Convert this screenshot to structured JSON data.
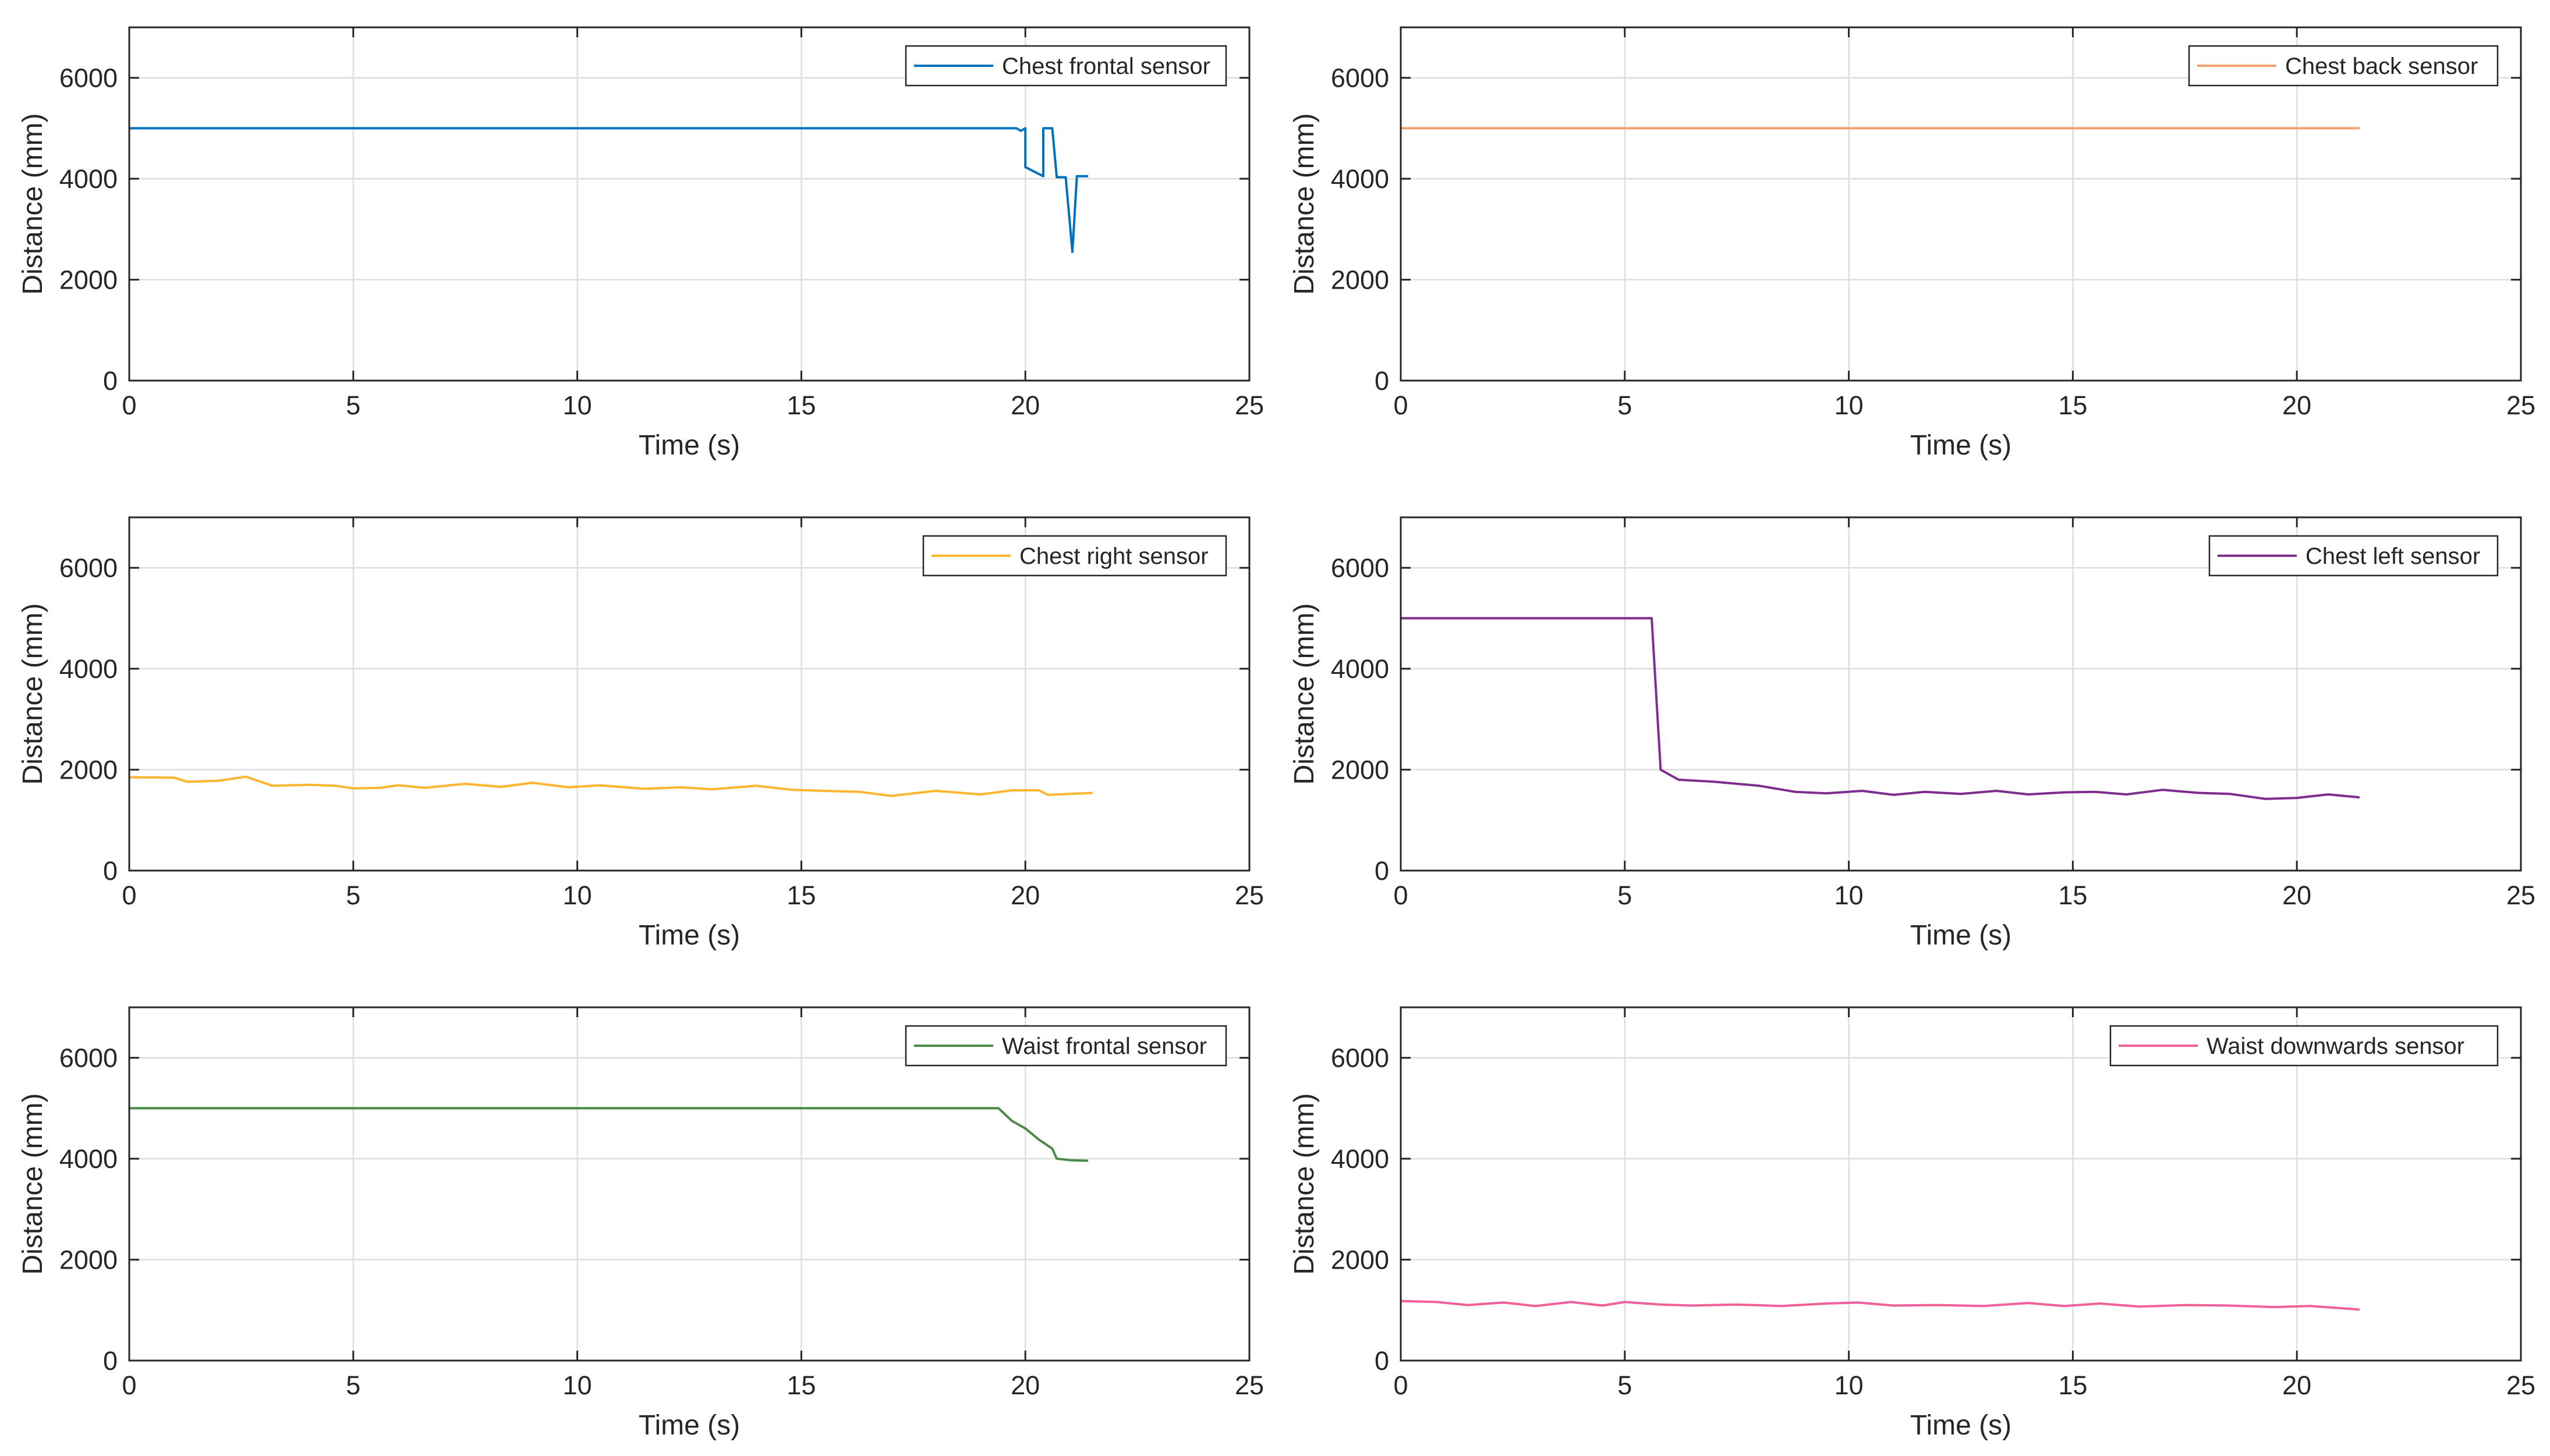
{
  "colors": {
    "axis": "#262626",
    "grid": "#dedede",
    "series": [
      "#0072BD",
      "#F0A36E",
      "#FFB52E",
      "#7E2F8E",
      "#4A8A48",
      "#F0609A"
    ]
  },
  "chart_data": [
    {
      "type": "line",
      "title": "",
      "xlabel": "Time (s)",
      "ylabel": "Distance (mm)",
      "xlim": [
        0,
        25
      ],
      "ylim": [
        0,
        7000
      ],
      "xticks": [
        0,
        5,
        10,
        15,
        20,
        25
      ],
      "yticks": [
        0,
        2000,
        4000,
        6000
      ],
      "legend": "top-right",
      "grid": true,
      "series": [
        {
          "name": "Chest frontal sensor",
          "x": [
            0,
            19.8,
            19.9,
            20.0,
            20.0,
            20.4,
            20.4,
            20.6,
            20.7,
            20.9,
            21.05,
            21.15,
            21.4
          ],
          "y": [
            5000,
            5000,
            4950,
            5000,
            4230,
            4050,
            5000,
            5000,
            4030,
            4030,
            2550,
            4050,
            4050
          ]
        }
      ]
    },
    {
      "type": "line",
      "title": "",
      "xlabel": "Time (s)",
      "ylabel": "Distance (mm)",
      "xlim": [
        0,
        25
      ],
      "ylim": [
        0,
        7000
      ],
      "xticks": [
        0,
        5,
        10,
        15,
        20,
        25
      ],
      "yticks": [
        0,
        2000,
        4000,
        6000
      ],
      "legend": "top-right",
      "grid": true,
      "series": [
        {
          "name": "Chest back sensor",
          "x": [
            0,
            21.4
          ],
          "y": [
            5000,
            5000
          ]
        }
      ]
    },
    {
      "type": "line",
      "title": "",
      "xlabel": "Time (s)",
      "ylabel": "Distance (mm)",
      "xlim": [
        0,
        25
      ],
      "ylim": [
        0,
        7000
      ],
      "xticks": [
        0,
        5,
        10,
        15,
        20,
        25
      ],
      "yticks": [
        0,
        2000,
        4000,
        6000
      ],
      "legend": "top-right",
      "grid": true,
      "series": [
        {
          "name": "Chest right sensor",
          "x": [
            0,
            1.0,
            1.3,
            2.0,
            2.6,
            3.2,
            4.0,
            4.6,
            5.0,
            5.6,
            6.0,
            6.6,
            7.5,
            8.3,
            9.0,
            9.8,
            10.5,
            11.5,
            12.3,
            13.0,
            14.0,
            14.8,
            15.5,
            16.3,
            17.0,
            18.0,
            19.0,
            19.7,
            20.3,
            20.5,
            21.5
          ],
          "y": [
            1850,
            1840,
            1760,
            1780,
            1860,
            1680,
            1700,
            1680,
            1630,
            1640,
            1690,
            1640,
            1720,
            1660,
            1740,
            1650,
            1690,
            1620,
            1650,
            1610,
            1680,
            1600,
            1580,
            1560,
            1480,
            1580,
            1510,
            1590,
            1590,
            1500,
            1540
          ]
        }
      ]
    },
    {
      "type": "line",
      "title": "",
      "xlabel": "Time (s)",
      "ylabel": "Distance (mm)",
      "xlim": [
        0,
        25
      ],
      "ylim": [
        0,
        7000
      ],
      "xticks": [
        0,
        5,
        10,
        15,
        20,
        25
      ],
      "yticks": [
        0,
        2000,
        4000,
        6000
      ],
      "legend": "top-right",
      "grid": true,
      "series": [
        {
          "name": "Chest left sensor",
          "x": [
            0,
            5.6,
            5.8,
            6.2,
            7.0,
            8.0,
            8.8,
            9.5,
            10.3,
            11.0,
            11.7,
            12.5,
            13.3,
            14.0,
            14.8,
            15.5,
            16.2,
            17.0,
            17.8,
            18.5,
            19.3,
            20.0,
            20.7,
            21.4
          ],
          "y": [
            5000,
            5000,
            2000,
            1800,
            1760,
            1680,
            1560,
            1530,
            1580,
            1500,
            1560,
            1520,
            1580,
            1510,
            1550,
            1560,
            1510,
            1600,
            1540,
            1520,
            1420,
            1440,
            1510,
            1450
          ]
        }
      ]
    },
    {
      "type": "line",
      "title": "",
      "xlabel": "Time (s)",
      "ylabel": "Distance (mm)",
      "xlim": [
        0,
        25
      ],
      "ylim": [
        0,
        7000
      ],
      "xticks": [
        0,
        5,
        10,
        15,
        20,
        25
      ],
      "yticks": [
        0,
        2000,
        4000,
        6000
      ],
      "legend": "top-right",
      "grid": true,
      "series": [
        {
          "name": "Waist frontal sensor",
          "x": [
            0,
            19.4,
            19.7,
            20.0,
            20.3,
            20.6,
            20.7,
            21.0,
            21.4
          ],
          "y": [
            5000,
            5000,
            4750,
            4600,
            4380,
            4200,
            4000,
            3970,
            3960
          ]
        }
      ]
    },
    {
      "type": "line",
      "title": "",
      "xlabel": "Time (s)",
      "ylabel": "Distance (mm)",
      "xlim": [
        0,
        25
      ],
      "ylim": [
        0,
        7000
      ],
      "xticks": [
        0,
        5,
        10,
        15,
        20,
        25
      ],
      "yticks": [
        0,
        2000,
        4000,
        6000
      ],
      "legend": "top-right",
      "grid": true,
      "series": [
        {
          "name": "Waist downwards sensor",
          "x": [
            0,
            0.8,
            1.5,
            2.3,
            3.0,
            3.8,
            4.5,
            5.0,
            5.8,
            6.5,
            7.5,
            8.5,
            9.5,
            10.2,
            11.0,
            12.0,
            13.0,
            14.0,
            14.8,
            15.6,
            16.5,
            17.5,
            18.5,
            19.5,
            20.3,
            21.4
          ],
          "y": [
            1180,
            1160,
            1100,
            1150,
            1080,
            1160,
            1090,
            1160,
            1110,
            1090,
            1110,
            1080,
            1130,
            1150,
            1090,
            1100,
            1080,
            1140,
            1080,
            1130,
            1070,
            1100,
            1090,
            1060,
            1080,
            1010
          ]
        }
      ]
    }
  ]
}
